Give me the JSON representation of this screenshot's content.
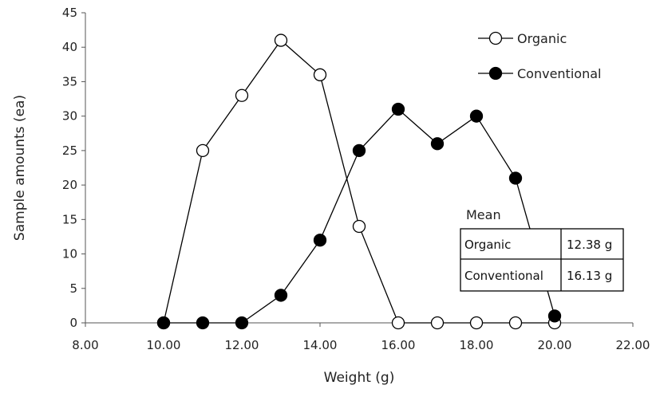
{
  "chart_data": {
    "type": "line",
    "title": "",
    "xlabel": "Weight (g)",
    "ylabel": "Sample amounts (ea)",
    "xlim": [
      8,
      22
    ],
    "ylim": [
      0,
      45
    ],
    "x_ticks": [
      8,
      10,
      12,
      14,
      16,
      18,
      20,
      22
    ],
    "x_tick_labels": [
      "8.00",
      "10.00",
      "12.00",
      "14.00",
      "16.00",
      "18.00",
      "20.00",
      "22.00"
    ],
    "y_ticks": [
      0,
      5,
      10,
      15,
      20,
      25,
      30,
      35,
      40,
      45
    ],
    "y_tick_labels": [
      "0",
      "5",
      "10",
      "15",
      "20",
      "25",
      "30",
      "35",
      "40",
      "45"
    ],
    "grid": false,
    "legend_position": "top-right",
    "series": [
      {
        "name": "Organic",
        "marker": "open-circle",
        "x": [
          10,
          11,
          12,
          13,
          14,
          15,
          16,
          17,
          18,
          19,
          20
        ],
        "y": [
          0,
          25,
          33,
          41,
          36,
          14,
          0,
          0,
          0,
          0,
          0
        ]
      },
      {
        "name": "Conventional",
        "marker": "filled-circle",
        "x": [
          10,
          11,
          12,
          13,
          14,
          15,
          16,
          17,
          18,
          19,
          20
        ],
        "y": [
          0,
          0,
          0,
          4,
          12,
          25,
          31,
          26,
          30,
          21,
          1
        ]
      }
    ],
    "mean_table": {
      "title": "Mean",
      "rows": [
        {
          "label": "Organic",
          "value": "12.38 g"
        },
        {
          "label": "Conventional",
          "value": "16.13 g"
        }
      ]
    },
    "colors": {
      "line": "#000000",
      "open_fill": "#ffffff",
      "filled": "#000000"
    }
  }
}
